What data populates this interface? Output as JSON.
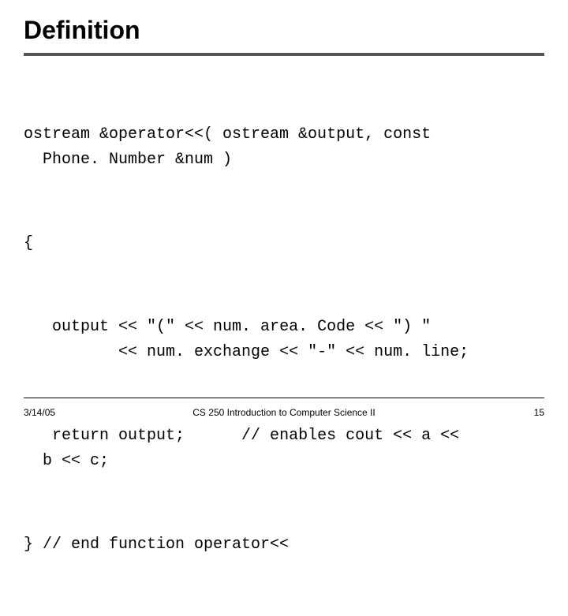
{
  "slide": {
    "title": "Definition",
    "title_color": "#000000",
    "title_fontsize": 32,
    "rule_color": "#555555",
    "rule_thickness": 4
  },
  "code": {
    "font_family": "Courier New",
    "font_size": 20,
    "color": "#000000",
    "line1": "ostream &operator<<( ostream &output, const",
    "line2": "  Phone. Number &num )",
    "line3": "{",
    "line4": "   output << \"(\" << num. area. Code << \") \"",
    "line5": "          << num. exchange << \"-\" << num. line;",
    "line6": "   return output;      // enables cout << a <<",
    "line7": "  b << c;",
    "line8": "} // end function operator<<"
  },
  "footer": {
    "date": "3/14/05",
    "course": "CS 250 Introduction to Computer Science II",
    "page": "15",
    "font_size": 12,
    "color": "#000000"
  },
  "background_color": "#ffffff"
}
